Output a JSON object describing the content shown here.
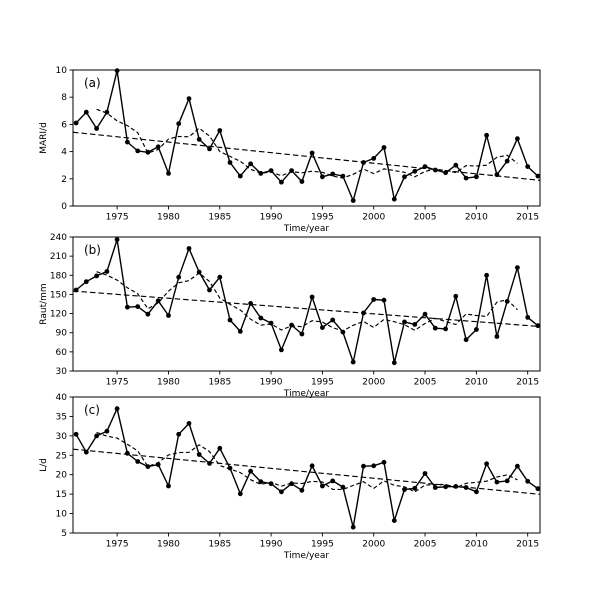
{
  "figure": {
    "background_color": "#ffffff",
    "line_color": "#000000",
    "xlabel": "Time/year",
    "grid": "off",
    "legend": "none",
    "series_styles": {
      "annual": "solid line with filled circle markers",
      "moving_average": "dashed wiggly line (5-year centered moving average)",
      "trend": "dashed straight linear trend line"
    }
  },
  "chart_data": [
    {
      "type": "line",
      "panel_label": "(a)",
      "ylabel": "MARI/d",
      "xlabel": "Time/year",
      "ylim": [
        0,
        10
      ],
      "yticks": [
        0,
        2,
        4,
        6,
        8,
        10
      ],
      "xticks": [
        1975,
        1980,
        1985,
        1990,
        1995,
        2000,
        2005,
        2010,
        2015
      ],
      "xlim": [
        1970.7,
        2016.2
      ],
      "x": [
        1971,
        1972,
        1973,
        1974,
        1975,
        1976,
        1977,
        1978,
        1979,
        1980,
        1981,
        1982,
        1983,
        1984,
        1985,
        1986,
        1987,
        1988,
        1989,
        1990,
        1991,
        1992,
        1993,
        1994,
        1995,
        1996,
        1997,
        1998,
        1999,
        2000,
        2001,
        2002,
        2003,
        2004,
        2005,
        2006,
        2007,
        2008,
        2009,
        2010,
        2011,
        2012,
        2013,
        2014,
        2015,
        2016
      ],
      "annual_values": [
        6.1,
        6.9,
        5.7,
        6.9,
        9.95,
        4.7,
        4.05,
        3.95,
        4.35,
        2.4,
        6.05,
        7.9,
        4.9,
        4.2,
        5.55,
        3.2,
        2.2,
        3.1,
        2.4,
        2.6,
        1.75,
        2.6,
        1.8,
        3.9,
        2.15,
        2.35,
        2.2,
        0.4,
        3.2,
        3.5,
        4.3,
        0.5,
        2.15,
        2.55,
        2.9,
        2.65,
        2.45,
        3.0,
        2.05,
        2.15,
        5.2,
        2.3,
        3.3,
        4.95,
        2.9,
        2.2
      ],
      "moving_average": {
        "window": 5,
        "style": "dashed"
      },
      "trend_line": {
        "x": [
          1971,
          2016
        ],
        "y": [
          5.4,
          1.9
        ],
        "style": "dashed"
      }
    },
    {
      "type": "line",
      "panel_label": "(b)",
      "ylabel": "Raut/mm",
      "xlabel": "Time/year",
      "ylim": [
        30,
        240
      ],
      "yticks": [
        30,
        60,
        90,
        120,
        150,
        180,
        210,
        240
      ],
      "xticks": [
        1975,
        1980,
        1985,
        1990,
        1995,
        2000,
        2005,
        2010,
        2015
      ],
      "xlim": [
        1970.7,
        2016.2
      ],
      "x": [
        1971,
        1972,
        1973,
        1974,
        1975,
        1976,
        1977,
        1978,
        1979,
        1980,
        1981,
        1982,
        1983,
        1984,
        1985,
        1986,
        1987,
        1988,
        1989,
        1990,
        1991,
        1992,
        1993,
        1994,
        1995,
        1996,
        1997,
        1998,
        1999,
        2000,
        2001,
        2002,
        2003,
        2004,
        2005,
        2006,
        2007,
        2008,
        2009,
        2010,
        2011,
        2012,
        2013,
        2014,
        2015,
        2016
      ],
      "annual_values": [
        157,
        170,
        179,
        186,
        236,
        130,
        131,
        119,
        140,
        117,
        177,
        222,
        185,
        157,
        177,
        110,
        92,
        136,
        113,
        105,
        63,
        102,
        88,
        146,
        98,
        110,
        91,
        44,
        121,
        142,
        141,
        43,
        107,
        103,
        119,
        97,
        96,
        147,
        79,
        95,
        180,
        84,
        139,
        192,
        114,
        101
      ],
      "moving_average": {
        "window": 5,
        "style": "dashed"
      },
      "trend_line": {
        "x": [
          1971,
          2016
        ],
        "y": [
          155,
          100
        ],
        "style": "dashed"
      }
    },
    {
      "type": "line",
      "panel_label": "(c)",
      "ylabel": "L/d",
      "xlabel": "Time/year",
      "ylim": [
        5,
        40
      ],
      "yticks": [
        5,
        10,
        15,
        20,
        25,
        30,
        35,
        40
      ],
      "xticks": [
        1975,
        1980,
        1985,
        1990,
        1995,
        2000,
        2005,
        2010,
        2015
      ],
      "xlim": [
        1970.7,
        2016.2
      ],
      "x": [
        1971,
        1972,
        1973,
        1974,
        1975,
        1976,
        1977,
        1978,
        1979,
        1980,
        1981,
        1982,
        1983,
        1984,
        1985,
        1986,
        1987,
        1988,
        1989,
        1990,
        1991,
        1992,
        1993,
        1994,
        1995,
        1996,
        1997,
        1998,
        1999,
        2000,
        2001,
        2002,
        2003,
        2004,
        2005,
        2006,
        2007,
        2008,
        2009,
        2010,
        2011,
        2012,
        2013,
        2014,
        2015,
        2016
      ],
      "annual_values": [
        30.4,
        25.8,
        30.0,
        31.2,
        37.0,
        25.5,
        23.4,
        22.1,
        22.6,
        17.1,
        30.4,
        33.2,
        25.2,
        22.9,
        26.8,
        21.7,
        15.1,
        20.9,
        18.2,
        17.7,
        15.6,
        17.7,
        16.0,
        22.3,
        17.1,
        18.4,
        16.8,
        6.5,
        22.2,
        22.3,
        23.2,
        8.2,
        16.2,
        16.5,
        20.3,
        16.7,
        16.9,
        17.0,
        16.7,
        15.6,
        22.8,
        18.1,
        18.4,
        22.2,
        18.3,
        16.4
      ],
      "moving_average": {
        "window": 5,
        "style": "dashed"
      },
      "trend_line": {
        "x": [
          1971,
          2016
        ],
        "y": [
          26.5,
          15.0
        ],
        "style": "dashed"
      }
    }
  ]
}
